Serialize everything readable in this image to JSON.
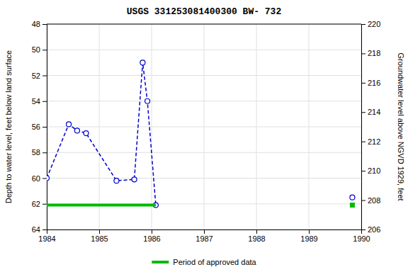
{
  "chart_data": {
    "type": "line",
    "title": "USGS 331253081400300 BW- 732",
    "ylabel": "Depth to water level, feet below land surface",
    "y2label": "Groundwater level above NGVD 1929, feet",
    "xlim": [
      1984.0,
      1990.0
    ],
    "xticks": [
      1984,
      1985,
      1986,
      1987,
      1988,
      1989,
      1990
    ],
    "ylim": [
      64,
      48
    ],
    "yticks": [
      48,
      50,
      52,
      54,
      56,
      58,
      60,
      62,
      64
    ],
    "y2lim": [
      206,
      220
    ],
    "y2ticks": [
      206,
      208,
      210,
      212,
      214,
      216,
      218,
      220
    ],
    "grid": true,
    "legend": "bottom",
    "series": [
      {
        "type": "line",
        "color": "#0000cc",
        "line_style": "dashed",
        "marker": "circle",
        "x": [
          1984.0,
          1984.42,
          1984.58,
          1984.75,
          1985.33,
          1985.67,
          1985.83,
          1985.92,
          1986.08
        ],
        "values": [
          60.0,
          55.8,
          56.3,
          56.5,
          60.2,
          60.1,
          51.0,
          54.0,
          62.1
        ]
      },
      {
        "type": "scatter",
        "color": "#0000cc",
        "marker": "circle",
        "x": [
          1989.83
        ],
        "values": [
          61.5
        ]
      },
      {
        "name": "Period of approved data",
        "type": "line",
        "color": "#00bb00",
        "line_style": "solid",
        "x": [
          1984.0,
          1986.08
        ],
        "values": [
          62.1,
          62.1
        ]
      },
      {
        "type": "scatter",
        "color": "#00bb00",
        "marker": "square",
        "x": [
          1989.83
        ],
        "values": [
          62.1
        ]
      }
    ]
  }
}
